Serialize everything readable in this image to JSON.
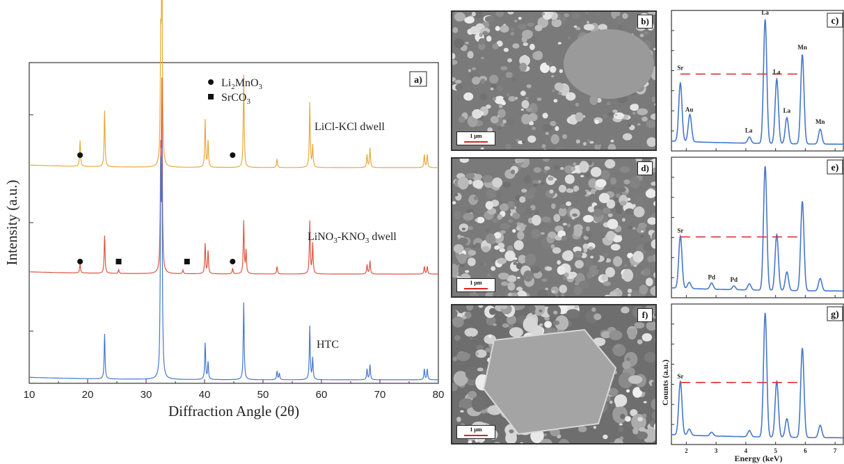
{
  "chart_data": [
    {
      "panel": "a)",
      "type": "line",
      "xlabel": "Diffraction Angle (2θ)",
      "ylabel": "Intensity (a.u.)",
      "xlim": [
        10,
        80
      ],
      "xticks": [
        "10",
        "20",
        "30",
        "40",
        "50",
        "60",
        "70",
        "80"
      ],
      "legend": [
        {
          "marker": "circle",
          "label_main": "Li",
          "label_sub1": "2",
          "label_mid": "MnO",
          "label_sub2": "3"
        },
        {
          "marker": "square",
          "label_main": "SrCO",
          "label_sub1": "3"
        }
      ],
      "series": [
        {
          "name": "LiCl-KCl dwell",
          "color": "#e8a93a",
          "offset": 2.0,
          "peaks": [
            [
              18.7,
              0.12
            ],
            [
              22.9,
              0.26
            ],
            [
              32.5,
              0.52
            ],
            [
              32.7,
              1.0
            ],
            [
              40.1,
              0.22
            ],
            [
              40.6,
              0.12
            ],
            [
              46.7,
              0.43
            ],
            [
              52.4,
              0.04
            ],
            [
              58.0,
              0.3
            ],
            [
              58.5,
              0.1
            ],
            [
              67.8,
              0.06
            ],
            [
              68.3,
              0.09
            ],
            [
              77.6,
              0.06
            ],
            [
              78.1,
              0.06
            ]
          ],
          "markers": [
            {
              "type": "circle",
              "x": 18.7
            },
            {
              "type": "circle",
              "x": 44.8
            }
          ]
        },
        {
          "name_main": "LiNO",
          "name_sub1": "3",
          "name_mid": "-KNO",
          "name_sub2": "3",
          "name_tail": " dwell",
          "color": "#dd5544",
          "offset": 1.0,
          "peaks": [
            [
              18.7,
              0.05
            ],
            [
              22.9,
              0.2
            ],
            [
              25.3,
              0.02
            ],
            [
              32.5,
              0.55
            ],
            [
              32.7,
              0.95
            ],
            [
              36.3,
              0.02
            ],
            [
              40.1,
              0.16
            ],
            [
              40.6,
              0.12
            ],
            [
              44.8,
              0.03
            ],
            [
              46.7,
              0.28
            ],
            [
              47.1,
              0.12
            ],
            [
              52.4,
              0.04
            ],
            [
              58.0,
              0.28
            ],
            [
              58.5,
              0.16
            ],
            [
              67.8,
              0.05
            ],
            [
              68.3,
              0.07
            ],
            [
              77.6,
              0.04
            ],
            [
              78.1,
              0.04
            ]
          ],
          "markers": [
            {
              "type": "circle",
              "x": 18.7
            },
            {
              "type": "square",
              "x": 25.3
            },
            {
              "type": "square",
              "x": 37.0
            },
            {
              "type": "circle",
              "x": 44.8
            }
          ]
        },
        {
          "name": "HTC",
          "color": "#4477cc",
          "offset": 0.0,
          "peaks": [
            [
              22.9,
              0.21
            ],
            [
              32.5,
              0.88
            ],
            [
              32.7,
              0.97
            ],
            [
              40.1,
              0.17
            ],
            [
              40.6,
              0.08
            ],
            [
              46.7,
              0.36
            ],
            [
              52.4,
              0.04
            ],
            [
              52.8,
              0.03
            ],
            [
              58.0,
              0.25
            ],
            [
              58.5,
              0.1
            ],
            [
              67.8,
              0.05
            ],
            [
              68.3,
              0.07
            ],
            [
              77.6,
              0.05
            ],
            [
              78.1,
              0.05
            ]
          ],
          "markers": []
        }
      ]
    },
    {
      "panel": "c)",
      "type": "line",
      "xlabel": "Energy (keV)",
      "ylabel": "Counts (a.u.)",
      "xlim": [
        1.5,
        7.3
      ],
      "xticks": [
        "2",
        "3",
        "4",
        "5",
        "6",
        "7"
      ],
      "color": "#4477cc",
      "ref_level": 0.55,
      "labels": [
        {
          "text": "Sr",
          "x": 1.8
        },
        {
          "text": "Au",
          "x": 2.1
        },
        {
          "text": "La",
          "x": 4.1
        },
        {
          "text": "La",
          "x": 4.65
        },
        {
          "text": "La",
          "x": 5.04
        },
        {
          "text": "La",
          "x": 5.38
        },
        {
          "text": "Mn",
          "x": 5.9
        },
        {
          "text": "Mn",
          "x": 6.5
        }
      ],
      "peaks": [
        [
          1.8,
          0.47
        ],
        [
          2.12,
          0.22
        ],
        [
          4.12,
          0.05
        ],
        [
          4.65,
          1.0
        ],
        [
          5.04,
          0.52
        ],
        [
          5.38,
          0.21
        ],
        [
          5.9,
          0.72
        ],
        [
          6.5,
          0.12
        ]
      ]
    },
    {
      "panel": "e)",
      "type": "line",
      "xlim": [
        1.5,
        7.3
      ],
      "color": "#4477cc",
      "ref_level": 0.42,
      "labels": [
        {
          "text": "Sr",
          "x": 1.8
        },
        {
          "text": "Pd",
          "x": 2.85
        },
        {
          "text": "Pd",
          "x": 3.6
        }
      ],
      "peaks": [
        [
          1.8,
          0.42
        ],
        [
          2.1,
          0.05
        ],
        [
          2.85,
          0.05
        ],
        [
          3.6,
          0.03
        ],
        [
          4.12,
          0.05
        ],
        [
          4.65,
          1.0
        ],
        [
          5.04,
          0.45
        ],
        [
          5.38,
          0.15
        ],
        [
          5.9,
          0.72
        ],
        [
          6.5,
          0.1
        ]
      ]
    },
    {
      "panel": "g)",
      "type": "line",
      "xlim": [
        1.5,
        7.3
      ],
      "color": "#4477cc",
      "ref_level": 0.43,
      "labels": [
        {
          "text": "Sr",
          "x": 1.8
        }
      ],
      "peaks": [
        [
          1.8,
          0.43
        ],
        [
          2.1,
          0.05
        ],
        [
          2.85,
          0.03
        ],
        [
          4.12,
          0.05
        ],
        [
          4.65,
          1.0
        ],
        [
          5.04,
          0.45
        ],
        [
          5.38,
          0.15
        ],
        [
          5.9,
          0.72
        ],
        [
          6.5,
          0.1
        ]
      ]
    }
  ],
  "sem_panels": [
    {
      "tag": "b)",
      "scale": "1 μm"
    },
    {
      "tag": "d)",
      "scale": "1 μm"
    },
    {
      "tag": "f)",
      "scale": "1 μm"
    }
  ]
}
